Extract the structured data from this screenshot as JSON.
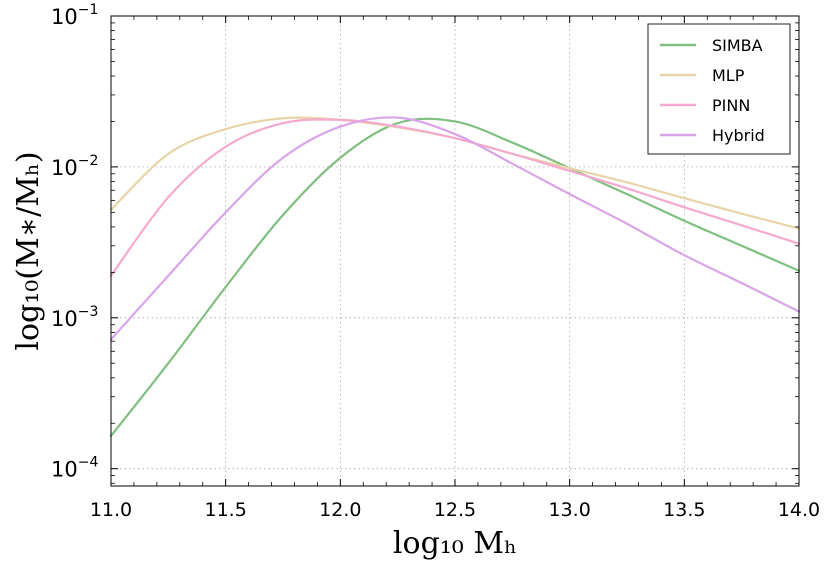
{
  "chart_data": {
    "type": "line",
    "xlabel": "log₁₀ Mₕ",
    "ylabel": "log₁₀(M∗/Mₕ)",
    "xlim": [
      11.0,
      14.0
    ],
    "ylim": [
      7.68e-05,
      0.1
    ],
    "yscale": "log",
    "grid": true,
    "legend_position": "top-right",
    "x_ticks": [
      "11.0",
      "11.5",
      "12.0",
      "12.5",
      "13.0",
      "13.5",
      "14.0"
    ],
    "y_ticks": [
      {
        "base": "10",
        "exp": "−1"
      },
      {
        "base": "10",
        "exp": "−2"
      },
      {
        "base": "10",
        "exp": "−3"
      },
      {
        "base": "10",
        "exp": "−4"
      }
    ],
    "x": [
      11.0,
      11.25,
      11.5,
      11.75,
      12.0,
      12.25,
      12.5,
      12.75,
      13.0,
      13.25,
      13.5,
      13.75,
      14.0
    ],
    "series": [
      {
        "name": "SIMBA",
        "color": "#7fbf7f",
        "values": [
          0.000165,
          0.0005,
          0.0016,
          0.0048,
          0.0115,
          0.0195,
          0.02,
          0.0145,
          0.0098,
          0.0066,
          0.0044,
          0.003,
          0.00205
        ]
      },
      {
        "name": "MLP",
        "color": "#e8d4a8",
        "values": [
          0.0052,
          0.0122,
          0.0178,
          0.021,
          0.0205,
          0.0183,
          0.0155,
          0.0122,
          0.0098,
          0.0079,
          0.0062,
          0.0049,
          0.0039
        ]
      },
      {
        "name": "PINN",
        "color": "#f6a9cf",
        "values": [
          0.0019,
          0.0063,
          0.0136,
          0.0195,
          0.0205,
          0.0185,
          0.0155,
          0.0122,
          0.0094,
          0.0072,
          0.0054,
          0.0041,
          0.0031
        ]
      },
      {
        "name": "Hybrid",
        "color": "#d9a4e8",
        "values": [
          0.00072,
          0.0019,
          0.005,
          0.0115,
          0.0185,
          0.0212,
          0.0165,
          0.0105,
          0.0066,
          0.0042,
          0.0026,
          0.0017,
          0.0011
        ]
      }
    ]
  }
}
